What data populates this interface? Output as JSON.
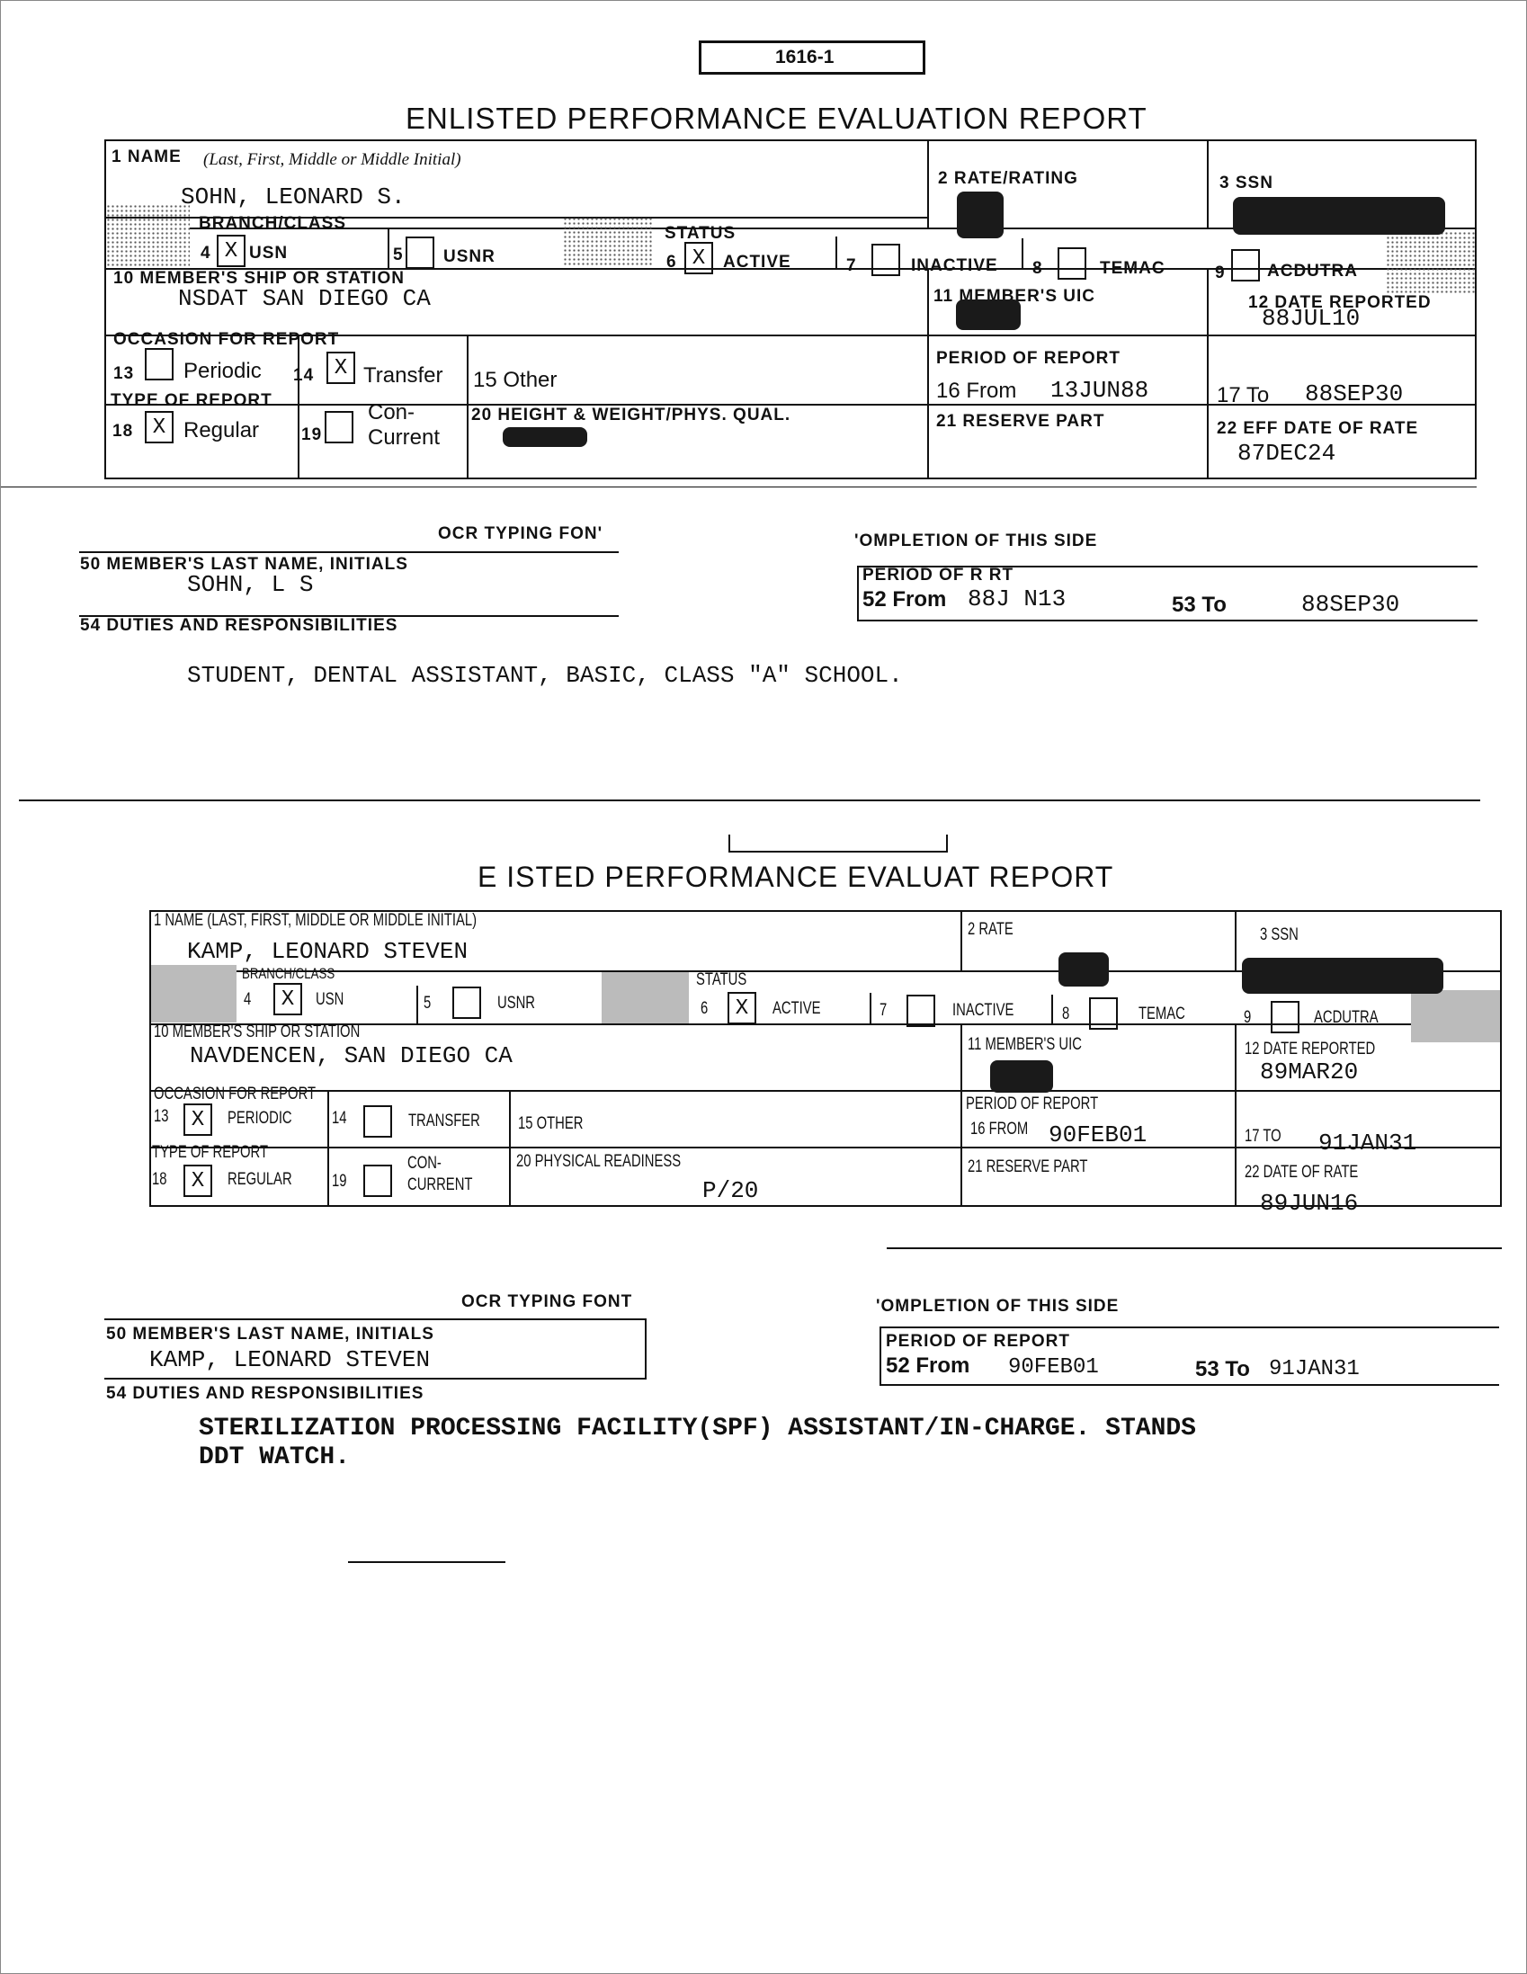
{
  "form_number": "1616-1",
  "report1": {
    "title": "ENLISTED PERFORMANCE EVALUATION REPORT",
    "name_label": "1 NAME",
    "name_hint": "(Last, First, Middle or Middle Initial)",
    "name": "SOHN, LEONARD S.",
    "rate_label": "2 RATE/RATING",
    "ssn_label": "3 SSN",
    "branch_label": "BRANCH/CLASS",
    "b4": "4",
    "b4_mark": "X",
    "b4_label": "USN",
    "b5": "5",
    "b5_mark": "",
    "b5_label": "USNR",
    "status_label": "STATUS",
    "s6": "6",
    "s6_mark": "X",
    "s6_label": "ACTIVE",
    "s7": "7",
    "s7_mark": "",
    "s7_label": "INACTIVE",
    "s8": "8",
    "s8_mark": "",
    "s8_label": "TEMAC",
    "s9": "9",
    "s9_mark": "",
    "s9_label": "ACDUTRA",
    "ship_label": "10 MEMBER'S SHIP OR STATION",
    "ship": "NSDAT SAN DIEGO CA",
    "uic_label": "11 MEMBER'S UIC",
    "date_reported_label": "12 DATE REPORTED",
    "date_reported": "88JUL10",
    "occasion_label": "OCCASION FOR REPORT",
    "o13": "13",
    "o13_mark": "",
    "o13_label": "Periodic",
    "o14": "14",
    "o14_mark": "X",
    "o14_label": "Transfer",
    "o15_label": "15  Other",
    "period_label": "PERIOD OF REPORT",
    "from_label": "16  From",
    "from": "13JUN88",
    "to_label": "17  To",
    "to": "88SEP30",
    "type_label": "TYPE OF REPORT",
    "t18": "18",
    "t18_mark": "X",
    "t18_label": "Regular",
    "t19": "19",
    "t19_mark": "",
    "t19_label_1": "Con-",
    "t19_label_2": "Current",
    "hw_label": "20 HEIGHT & WEIGHT/PHYS. QUAL.",
    "reserve_label": "21  RESERVE PART",
    "eff_label": "22  EFF DATE OF RATE",
    "eff": "87DEC24"
  },
  "back1": {
    "ocr_label": "OCR TYPING FON'",
    "completion_label": "'OMPLETION OF THIS SIDE",
    "member_label": "50  MEMBER'S LAST NAME, INITIALS",
    "member": "SOHN, L S",
    "period_label": "PERIOD OF R   RT",
    "from_label": "52  From",
    "from": "88J  N13",
    "to_label": "53  To",
    "to": "88SEP30",
    "duties_label": "54  DUTIES AND RESPONSIBILITIES",
    "duties": "STUDENT, DENTAL ASSISTANT, BASIC, CLASS \"A\" SCHOOL."
  },
  "report2": {
    "title": "E    ISTED PERFORMANCE EVALUAT    REPORT",
    "name_label": "1 NAME (LAST, FIRST, MIDDLE OR MIDDLE INITIAL)",
    "name": "KAMP, LEONARD STEVEN",
    "rate_label": "2 RATE",
    "ssn_label": "3 SSN",
    "branch_label": "BRANCH/CLASS",
    "b4": "4",
    "b4_mark": "X",
    "b4_label": "USN",
    "b5": "5",
    "b5_mark": "",
    "b5_label": "USNR",
    "status_label": "STATUS",
    "s6": "6",
    "s6_mark": "X",
    "s6_label": "ACTIVE",
    "s7": "7",
    "s7_mark": "",
    "s7_label": "INACTIVE",
    "s8": "8",
    "s8_mark": "",
    "s8_label": "TEMAC",
    "s9": "9",
    "s9_mark": "",
    "s9_label": "ACDUTRA",
    "ship_label": "10 MEMBER'S SHIP OR STATION",
    "ship": "NAVDENCEN, SAN DIEGO CA",
    "uic_label": "11 MEMBER'S UIC",
    "date_reported_label": "12 DATE REPORTED",
    "date_reported": "89MAR20",
    "occasion_label": "OCCASION FOR REPORT",
    "o13": "13",
    "o13_mark": "X",
    "o13_label": "PERIODIC",
    "o14": "14",
    "o14_mark": "",
    "o14_label": "TRANSFER",
    "o15_label": "15 OTHER",
    "period_label": "PERIOD OF REPORT",
    "from_label": "16 FROM",
    "from": "90FEB01",
    "to_label": "17 TO",
    "to": "91JAN31",
    "type_label": "TYPE OF REPORT",
    "t18": "18",
    "t18_mark": "X",
    "t18_label": "REGULAR",
    "t19": "19",
    "t19_mark": "",
    "t19_label_1": "CON-",
    "t19_label_2": "CURRENT",
    "pr_label": "20 PHYSICAL READINESS",
    "pr": "P/20",
    "reserve_label": "21 RESERVE PART",
    "rate_date_label": "22 DATE OF RATE",
    "rate_date": "89JUN16"
  },
  "back2": {
    "ocr_label": "OCR TYPING FONT",
    "completion_label": "'OMPLETION OF THIS SIDE",
    "member_label": "50  MEMBER'S LAST NAME, INITIALS",
    "member": "KAMP, LEONARD STEVEN",
    "period_label": "PERIOD OF REPORT",
    "from_label": "52  From",
    "from": "90FEB01",
    "to_label": "53  To",
    "to": "91JAN31",
    "duties_label": "54  DUTIES AND RESPONSIBILITIES",
    "duties_1": "STERILIZATION PROCESSING FACILITY(SPF) ASSISTANT/IN-CHARGE.   STANDS",
    "duties_2": "DDT WATCH."
  }
}
